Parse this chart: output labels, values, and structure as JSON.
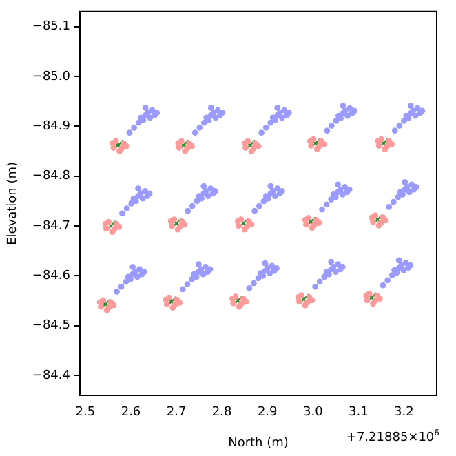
{
  "chart_data": {
    "type": "scatter",
    "xlabel": "North (m)",
    "ylabel": "Elevation (m)",
    "xlim": [
      2.488,
      3.272
    ],
    "ylim": [
      -84.36,
      -85.13
    ],
    "xticks": [
      2.5,
      2.6,
      2.7,
      2.8,
      2.9,
      {
        "value": 3.0,
        "label": "3.0"
      },
      3.1,
      3.2
    ],
    "yticks": [
      {
        "value": -85.1,
        "label": "−85.1"
      },
      {
        "value": -85.0,
        "label": "−85.0"
      },
      {
        "value": -84.9,
        "label": "−84.9"
      },
      {
        "value": -84.8,
        "label": "−84.8"
      },
      {
        "value": -84.7,
        "label": "−84.7"
      },
      {
        "value": -84.6,
        "label": "−84.6"
      },
      {
        "value": -84.5,
        "label": "−84.5"
      },
      {
        "value": -84.4,
        "label": "−84.4"
      }
    ],
    "grid": false,
    "legend": false,
    "annotations": [
      "+7.21885×10$^{6}$"
    ],
    "series": [
      {
        "color": "#9a9aff",
        "marker": "circle",
        "x": [
          2.597,
          2.607,
          2.617,
          2.622,
          2.627,
          2.632,
          2.637,
          2.642,
          2.647,
          2.652,
          2.632,
          2.657,
          2.741,
          2.751,
          2.761,
          2.766,
          2.771,
          2.776,
          2.781,
          2.786,
          2.791,
          2.796,
          2.776,
          2.801,
          2.887,
          2.897,
          2.907,
          2.912,
          2.917,
          2.922,
          2.927,
          2.932,
          2.937,
          2.942,
          2.922,
          2.947,
          3.031,
          3.041,
          3.051,
          3.056,
          3.061,
          3.066,
          3.071,
          3.076,
          3.081,
          3.086,
          3.066,
          3.091,
          3.18,
          3.19,
          3.2,
          3.205,
          3.21,
          3.215,
          3.22,
          3.225,
          3.23,
          3.235,
          3.215,
          3.24,
          2.581,
          2.591,
          2.601,
          2.606,
          2.611,
          2.616,
          2.621,
          2.626,
          2.631,
          2.636,
          2.616,
          2.641,
          2.725,
          2.735,
          2.745,
          2.75,
          2.755,
          2.76,
          2.765,
          2.77,
          2.775,
          2.78,
          2.76,
          2.785,
          2.872,
          2.882,
          2.892,
          2.897,
          2.902,
          2.907,
          2.912,
          2.917,
          2.922,
          2.927,
          2.907,
          2.932,
          3.02,
          3.03,
          3.04,
          3.045,
          3.05,
          3.055,
          3.06,
          3.065,
          3.07,
          3.075,
          3.055,
          3.08,
          3.167,
          3.177,
          3.187,
          3.192,
          3.197,
          3.202,
          3.207,
          3.212,
          3.217,
          3.222,
          3.202,
          3.227,
          2.569,
          2.579,
          2.589,
          2.594,
          2.599,
          2.604,
          2.609,
          2.614,
          2.619,
          2.624,
          2.604,
          2.629,
          2.714,
          2.724,
          2.734,
          2.739,
          2.744,
          2.749,
          2.754,
          2.759,
          2.764,
          2.769,
          2.749,
          2.774,
          2.86,
          2.87,
          2.88,
          2.885,
          2.89,
          2.895,
          2.9,
          2.905,
          2.91,
          2.915,
          2.895,
          2.92,
          3.005,
          3.015,
          3.025,
          3.03,
          3.035,
          3.04,
          3.045,
          3.05,
          3.055,
          3.06,
          3.04,
          3.065,
          3.154,
          3.164,
          3.174,
          3.179,
          3.184,
          3.189,
          3.194,
          3.199,
          3.204,
          3.209,
          3.189,
          3.214
        ],
        "values": [
          -84.887,
          -84.897,
          -84.907,
          -84.917,
          -84.912,
          -84.922,
          -84.927,
          -84.917,
          -84.932,
          -84.922,
          -84.937,
          -84.927,
          -84.887,
          -84.897,
          -84.907,
          -84.917,
          -84.912,
          -84.922,
          -84.927,
          -84.917,
          -84.932,
          -84.922,
          -84.937,
          -84.927,
          -84.887,
          -84.897,
          -84.907,
          -84.917,
          -84.912,
          -84.922,
          -84.927,
          -84.917,
          -84.932,
          -84.922,
          -84.937,
          -84.927,
          -84.891,
          -84.901,
          -84.911,
          -84.921,
          -84.916,
          -84.926,
          -84.931,
          -84.921,
          -84.936,
          -84.926,
          -84.941,
          -84.931,
          -84.891,
          -84.901,
          -84.911,
          -84.921,
          -84.916,
          -84.926,
          -84.931,
          -84.921,
          -84.936,
          -84.926,
          -84.941,
          -84.931,
          -84.725,
          -84.735,
          -84.745,
          -84.755,
          -84.75,
          -84.76,
          -84.765,
          -84.755,
          -84.77,
          -84.76,
          -84.775,
          -84.765,
          -84.73,
          -84.74,
          -84.75,
          -84.76,
          -84.755,
          -84.765,
          -84.77,
          -84.76,
          -84.775,
          -84.765,
          -84.78,
          -84.77,
          -84.73,
          -84.74,
          -84.75,
          -84.76,
          -84.755,
          -84.765,
          -84.77,
          -84.76,
          -84.775,
          -84.765,
          -84.78,
          -84.77,
          -84.733,
          -84.743,
          -84.753,
          -84.763,
          -84.758,
          -84.768,
          -84.773,
          -84.763,
          -84.778,
          -84.768,
          -84.783,
          -84.773,
          -84.738,
          -84.748,
          -84.758,
          -84.768,
          -84.763,
          -84.773,
          -84.778,
          -84.768,
          -84.783,
          -84.773,
          -84.788,
          -84.778,
          -84.568,
          -84.578,
          -84.588,
          -84.598,
          -84.593,
          -84.603,
          -84.608,
          -84.598,
          -84.613,
          -84.603,
          -84.618,
          -84.608,
          -84.573,
          -84.583,
          -84.593,
          -84.603,
          -84.598,
          -84.608,
          -84.613,
          -84.603,
          -84.618,
          -84.608,
          -84.623,
          -84.613,
          -84.575,
          -84.585,
          -84.595,
          -84.605,
          -84.6,
          -84.61,
          -84.615,
          -84.605,
          -84.62,
          -84.61,
          -84.625,
          -84.615,
          -84.578,
          -84.588,
          -84.598,
          -84.608,
          -84.603,
          -84.613,
          -84.618,
          -84.608,
          -84.623,
          -84.613,
          -84.628,
          -84.618,
          -84.581,
          -84.591,
          -84.601,
          -84.611,
          -84.606,
          -84.616,
          -84.621,
          -84.611,
          -84.626,
          -84.616,
          -84.631,
          -84.621
        ]
      },
      {
        "color": "#ff9a9a",
        "marker": "circle",
        "x": [
          2.562,
          2.567,
          2.58,
          2.584,
          2.575,
          2.56,
          2.59,
          2.706,
          2.711,
          2.724,
          2.728,
          2.719,
          2.704,
          2.734,
          2.852,
          2.857,
          2.87,
          2.874,
          2.865,
          2.85,
          2.88,
          2.996,
          3.001,
          3.014,
          3.018,
          3.009,
          2.994,
          3.024,
          3.145,
          3.15,
          3.163,
          3.167,
          3.158,
          3.143,
          3.173,
          2.546,
          2.551,
          2.564,
          2.568,
          2.559,
          2.544,
          2.574,
          2.69,
          2.695,
          2.708,
          2.712,
          2.703,
          2.688,
          2.718,
          2.837,
          2.842,
          2.855,
          2.859,
          2.85,
          2.835,
          2.865,
          2.985,
          2.99,
          3.003,
          3.007,
          2.998,
          2.983,
          3.013,
          3.132,
          3.137,
          3.15,
          3.154,
          3.145,
          3.13,
          3.16,
          2.534,
          2.539,
          2.552,
          2.556,
          2.547,
          2.532,
          2.562,
          2.679,
          2.684,
          2.697,
          2.701,
          2.692,
          2.677,
          2.707,
          2.825,
          2.83,
          2.843,
          2.847,
          2.838,
          2.823,
          2.853,
          2.97,
          2.975,
          2.988,
          2.992,
          2.983,
          2.968,
          2.998,
          3.119,
          3.124,
          3.137,
          3.141,
          3.132,
          3.117,
          3.147
        ],
        "values": [
          -84.857,
          -84.87,
          -84.856,
          -84.866,
          -84.85,
          -84.866,
          -84.86,
          -84.857,
          -84.87,
          -84.856,
          -84.866,
          -84.85,
          -84.866,
          -84.86,
          -84.857,
          -84.87,
          -84.856,
          -84.866,
          -84.85,
          -84.866,
          -84.86,
          -84.861,
          -84.874,
          -84.86,
          -84.87,
          -84.854,
          -84.87,
          -84.864,
          -84.861,
          -84.874,
          -84.86,
          -84.87,
          -84.854,
          -84.87,
          -84.864,
          -84.695,
          -84.708,
          -84.694,
          -84.704,
          -84.688,
          -84.704,
          -84.698,
          -84.7,
          -84.713,
          -84.699,
          -84.709,
          -84.693,
          -84.709,
          -84.703,
          -84.7,
          -84.713,
          -84.699,
          -84.709,
          -84.693,
          -84.709,
          -84.703,
          -84.703,
          -84.716,
          -84.702,
          -84.712,
          -84.696,
          -84.712,
          -84.706,
          -84.708,
          -84.721,
          -84.707,
          -84.717,
          -84.701,
          -84.717,
          -84.711,
          -84.538,
          -84.551,
          -84.537,
          -84.547,
          -84.531,
          -84.547,
          -84.541,
          -84.543,
          -84.556,
          -84.542,
          -84.552,
          -84.536,
          -84.552,
          -84.546,
          -84.545,
          -84.558,
          -84.544,
          -84.554,
          -84.538,
          -84.554,
          -84.548,
          -84.548,
          -84.561,
          -84.547,
          -84.557,
          -84.541,
          -84.557,
          -84.551,
          -84.551,
          -84.564,
          -84.55,
          -84.56,
          -84.544,
          -84.56,
          -84.554
        ]
      },
      {
        "color": "#2e8b2e",
        "marker": "cross",
        "x": [
          2.572,
          2.716,
          2.862,
          3.006,
          3.155,
          2.556,
          2.7,
          2.847,
          2.995,
          3.142,
          2.544,
          2.689,
          2.835,
          2.98,
          3.129
        ],
        "values": [
          -84.862,
          -84.862,
          -84.862,
          -84.866,
          -84.866,
          -84.7,
          -84.705,
          -84.705,
          -84.708,
          -84.713,
          -84.543,
          -84.548,
          -84.55,
          -84.553,
          -84.556
        ]
      }
    ]
  }
}
